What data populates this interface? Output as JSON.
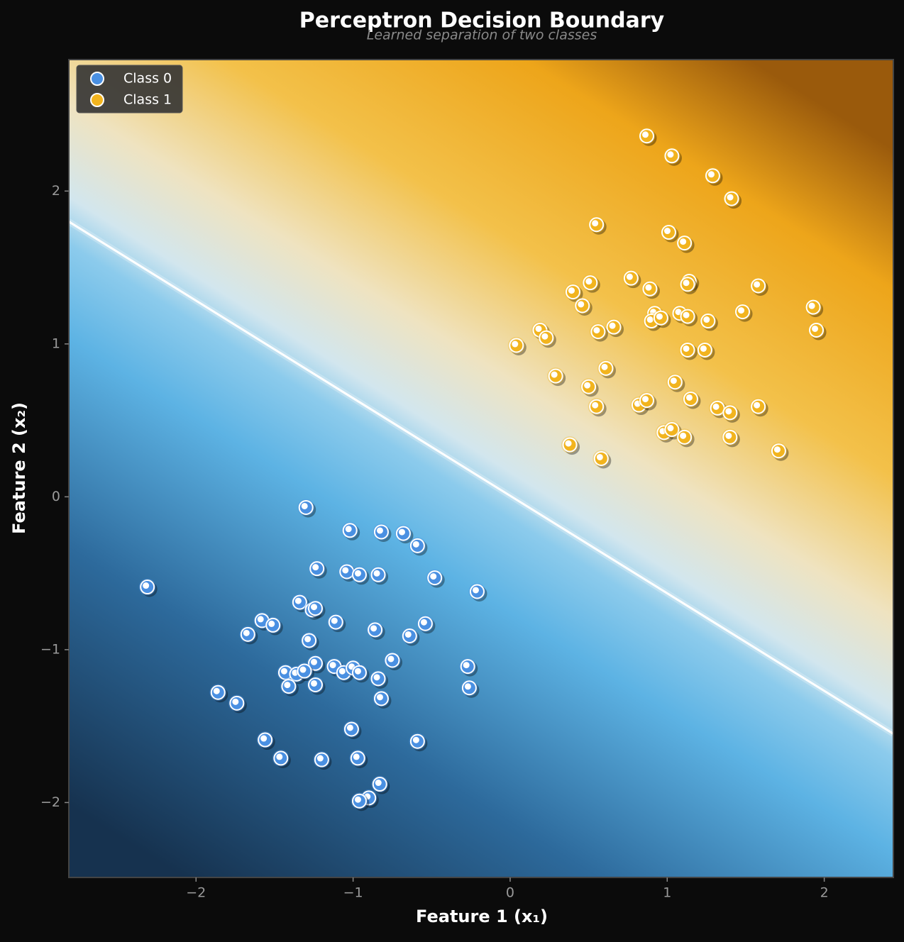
{
  "chart_data": {
    "type": "scatter",
    "title": "Perceptron Decision Boundary",
    "subtitle": "Learned separation of two classes",
    "x_label": "Feature 1 (x₁)",
    "y_label": "Feature 2 (x₂)",
    "xlim": [
      -2.81,
      2.44
    ],
    "ylim": [
      -2.49,
      2.86
    ],
    "xticks": [
      {
        "value": -2,
        "label": "−2"
      },
      {
        "value": -1,
        "label": "−1"
      },
      0,
      1,
      2
    ],
    "yticks": [
      {
        "value": -2,
        "label": "−2"
      },
      {
        "value": -1,
        "label": "−1"
      },
      0,
      1,
      2
    ],
    "legend": "upper left",
    "boundary": {
      "x": [
        -2.81,
        2.44
      ],
      "y": [
        1.8,
        -1.55
      ],
      "color": "#ffffff"
    },
    "series": [
      {
        "name": "Class 0",
        "color": "#4a90e2",
        "x": [
          -1.3,
          -1.02,
          -0.82,
          -0.68,
          -0.59,
          -1.23,
          -1.04,
          -0.96,
          -0.84,
          -0.48,
          -0.21,
          -2.31,
          -1.34,
          -1.26,
          -1.24,
          -1.58,
          -1.51,
          -1.11,
          -0.54,
          -1.67,
          -0.86,
          -0.64,
          -1.28,
          -0.75,
          -1.24,
          -0.27,
          -1.43,
          -1.36,
          -1.31,
          -1.12,
          -1.06,
          -1.0,
          -0.96,
          -0.84,
          -1.41,
          -1.24,
          -0.26,
          -1.86,
          -1.74,
          -0.82,
          -1.01,
          -1.56,
          -0.59,
          -1.46,
          -0.97,
          -1.2,
          -0.83,
          -0.9,
          -0.96
        ],
        "values": [
          -0.07,
          -0.22,
          -0.23,
          -0.24,
          -0.32,
          -0.47,
          -0.49,
          -0.51,
          -0.51,
          -0.53,
          -0.62,
          -0.59,
          -0.69,
          -0.74,
          -0.73,
          -0.81,
          -0.84,
          -0.82,
          -0.83,
          -0.9,
          -0.87,
          -0.91,
          -0.94,
          -1.07,
          -1.09,
          -1.11,
          -1.15,
          -1.16,
          -1.14,
          -1.11,
          -1.15,
          -1.12,
          -1.15,
          -1.19,
          -1.24,
          -1.23,
          -1.25,
          -1.28,
          -1.35,
          -1.32,
          -1.52,
          -1.59,
          -1.6,
          -1.71,
          -1.71,
          -1.72,
          -1.88,
          -1.97,
          -1.99
        ]
      },
      {
        "name": "Class 1",
        "color": "#f2b41e",
        "x": [
          0.87,
          1.03,
          1.29,
          1.41,
          0.55,
          1.01,
          1.11,
          0.77,
          0.51,
          1.14,
          1.13,
          0.4,
          0.89,
          1.58,
          0.46,
          1.93,
          0.92,
          1.48,
          1.08,
          1.13,
          0.9,
          0.96,
          1.26,
          0.66,
          0.19,
          0.56,
          0.23,
          1.95,
          0.04,
          1.13,
          1.24,
          0.61,
          0.29,
          1.05,
          0.5,
          1.15,
          1.32,
          1.4,
          1.58,
          0.55,
          0.82,
          0.87,
          0.98,
          1.03,
          1.11,
          1.4,
          0.38,
          1.71,
          0.58
        ],
        "values": [
          2.36,
          2.23,
          2.1,
          1.95,
          1.78,
          1.73,
          1.66,
          1.43,
          1.4,
          1.41,
          1.39,
          1.34,
          1.36,
          1.38,
          1.25,
          1.24,
          1.2,
          1.21,
          1.2,
          1.18,
          1.15,
          1.17,
          1.15,
          1.11,
          1.09,
          1.08,
          1.04,
          1.09,
          0.99,
          0.96,
          0.96,
          0.84,
          0.79,
          0.75,
          0.72,
          0.64,
          0.58,
          0.55,
          0.59,
          0.59,
          0.6,
          0.63,
          0.42,
          0.44,
          0.39,
          0.39,
          0.34,
          0.3,
          0.25
        ]
      }
    ]
  }
}
